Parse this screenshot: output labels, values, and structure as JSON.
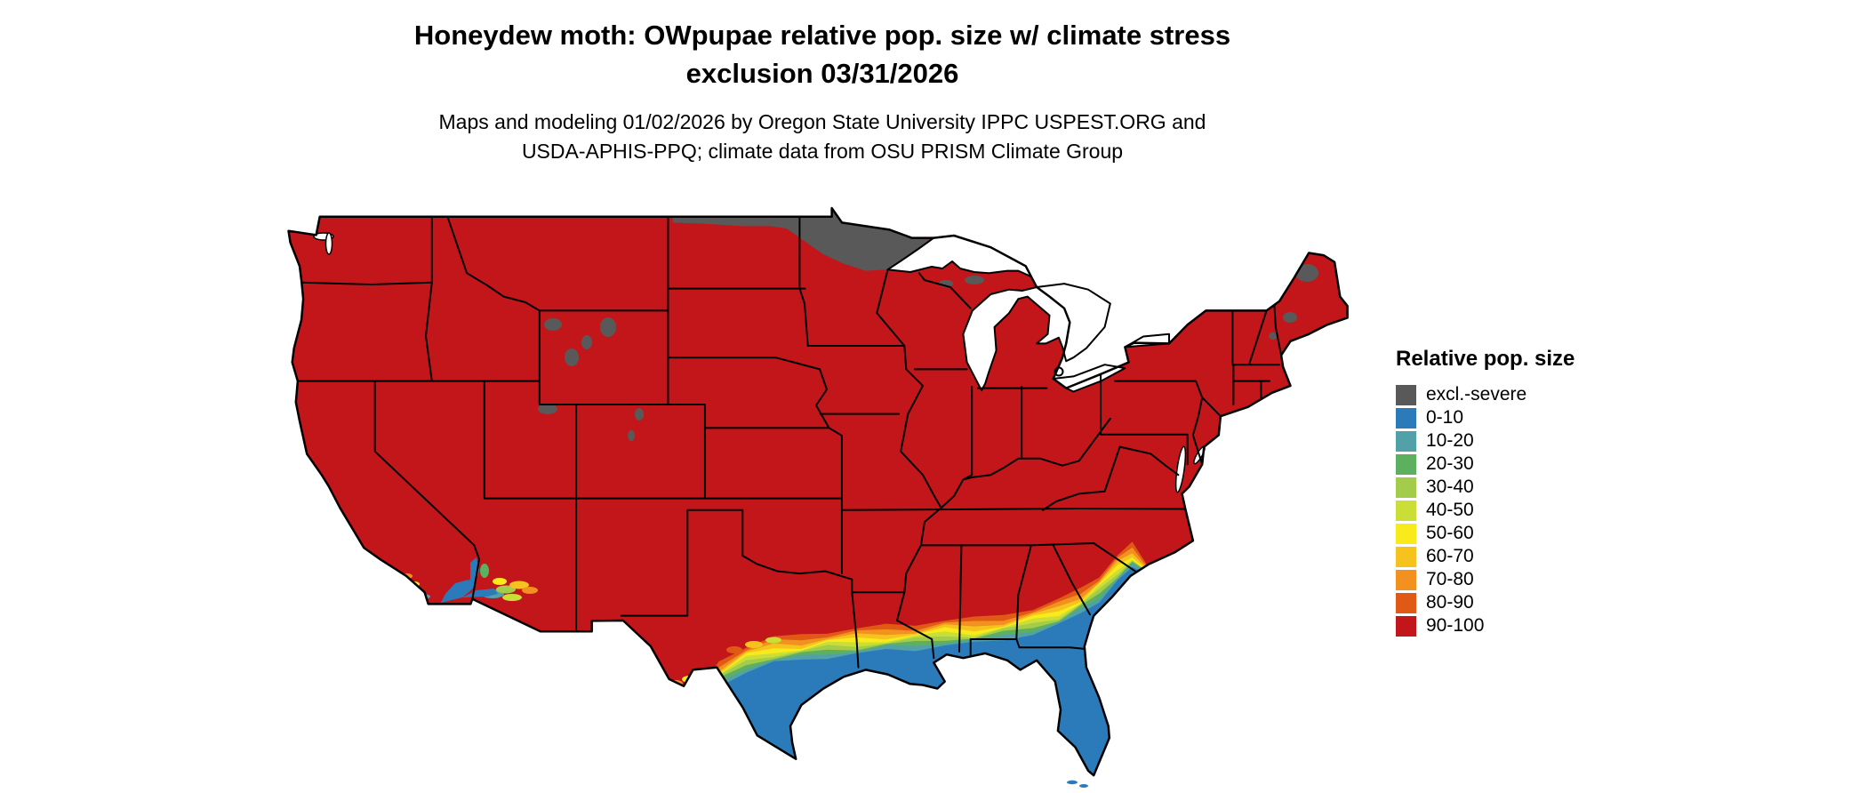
{
  "title": {
    "line1": "Honeydew moth: OWpupae relative pop. size w/ climate stress",
    "line2": "exclusion 03/31/2026"
  },
  "subtitle": {
    "line1": "Maps and modeling 01/02/2026 by Oregon State University IPPC USPEST.ORG and",
    "line2": "USDA-APHIS-PPQ; climate data from OSU PRISM Climate Group"
  },
  "legend": {
    "title": "Relative pop. size",
    "items": [
      {
        "key": "excl",
        "label": "excl.-severe",
        "color": "#595959"
      },
      {
        "key": "b0",
        "label": "0-10",
        "color": "#2B7BBA"
      },
      {
        "key": "b10",
        "label": "10-20",
        "color": "#52A0A8"
      },
      {
        "key": "b20",
        "label": "20-30",
        "color": "#5DB05F"
      },
      {
        "key": "b30",
        "label": "30-40",
        "color": "#A2CC4A"
      },
      {
        "key": "b40",
        "label": "40-50",
        "color": "#CBDD37"
      },
      {
        "key": "b50",
        "label": "50-60",
        "color": "#F9EB1B"
      },
      {
        "key": "b60",
        "label": "60-70",
        "color": "#F6C31E"
      },
      {
        "key": "b70",
        "label": "70-80",
        "color": "#F2911F"
      },
      {
        "key": "b80",
        "label": "80-90",
        "color": "#E05A16"
      },
      {
        "key": "b90",
        "label": "90-100",
        "color": "#C2161B"
      }
    ]
  }
}
